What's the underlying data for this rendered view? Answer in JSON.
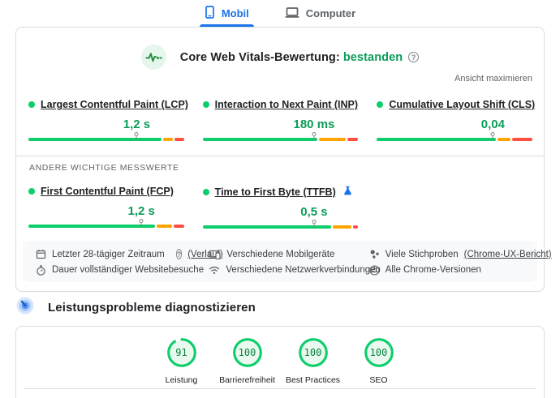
{
  "tabs": {
    "mobile": "Mobil",
    "desktop": "Computer"
  },
  "cwv": {
    "title": "Core Web Vitals-Bewertung:",
    "status": "bestanden",
    "expand": "Ansicht maximieren",
    "other_label": "ANDERE WICHTIGE MESSWERTE",
    "metrics": [
      {
        "row": 1,
        "name": "Largest Contentful Paint (LCP)",
        "value": "1,2 s",
        "marker_pct": 70,
        "segments": {
          "green": 86,
          "orange": 6.5,
          "red": 6
        },
        "experimental": false
      },
      {
        "row": 1,
        "name": "Interaction to Next Paint (INP)",
        "value": "180 ms",
        "marker_pct": 72,
        "segments": {
          "green": 74,
          "orange": 17.5,
          "red": 7
        },
        "experimental": false
      },
      {
        "row": 1,
        "name": "Cumulative Layout Shift (CLS)",
        "value": "0,04",
        "marker_pct": 75,
        "segments": {
          "green": 77,
          "orange": 8.5,
          "red": 13
        },
        "experimental": false
      },
      {
        "row": 2,
        "name": "First Contentful Paint (FCP)",
        "value": "1,2 s",
        "marker_pct": 73,
        "segments": {
          "green": 82,
          "orange": 10,
          "red": 6.5
        },
        "experimental": false
      },
      {
        "row": 2,
        "name": "Time to First Byte (TTFB)",
        "value": "0,5 s",
        "marker_pct": 72,
        "segments": {
          "green": 83,
          "orange": 12,
          "red": 3.5
        },
        "experimental": true
      }
    ],
    "footer": [
      {
        "icon": "calendar",
        "text": "Letzter 28-tägiger Zeitraum",
        "help": true,
        "link": "(Verlauf)"
      },
      {
        "icon": "devices",
        "text": "Verschiedene Mobilgeräte",
        "help": false,
        "link": ""
      },
      {
        "icon": "samples",
        "text": "Viele Stichproben",
        "help": false,
        "link": "(Chrome-UX-Bericht)"
      },
      {
        "icon": "timer",
        "text": "Dauer vollständiger Websitebesuche",
        "help": false,
        "link": ""
      },
      {
        "icon": "network",
        "text": "Verschiedene Netzwerkverbindungen",
        "help": false,
        "link": ""
      },
      {
        "icon": "chrome",
        "text": "Alle Chrome-Versionen",
        "help": false,
        "link": ""
      }
    ]
  },
  "diagnose": {
    "title": "Leistungsprobleme diagnostizieren"
  },
  "scores": [
    {
      "value": "91",
      "pct": 91,
      "label": "Leistung"
    },
    {
      "value": "100",
      "pct": 100,
      "label": "Barrierefreiheit"
    },
    {
      "value": "100",
      "pct": 100,
      "label": "Best Practices"
    },
    {
      "value": "100",
      "pct": 100,
      "label": "SEO"
    }
  ],
  "colors": {
    "green": "#0cce6b",
    "orange": "#ffa400",
    "red": "#ff4e42",
    "txtgreen": "#0b9d57",
    "blue": "#1a73e8"
  }
}
